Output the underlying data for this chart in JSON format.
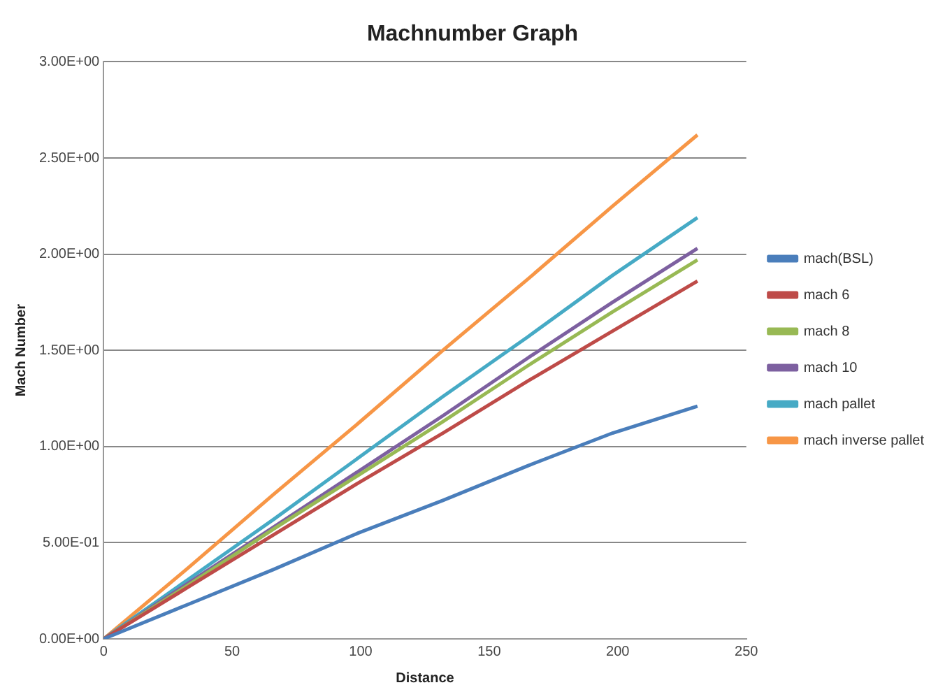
{
  "chart_data": {
    "type": "line",
    "title": "Machnumber Graph",
    "xlabel": "Distance",
    "ylabel": "Mach Number",
    "x": [
      0,
      33,
      66,
      99,
      132,
      165,
      198,
      231
    ],
    "series": [
      {
        "name": "mach(BSL)",
        "color": "#4a7ebb",
        "values": [
          0,
          0.18,
          0.36,
          0.55,
          0.72,
          0.9,
          1.07,
          1.21
        ]
      },
      {
        "name": "mach 6",
        "color": "#be4b48",
        "values": [
          0,
          0.27,
          0.54,
          0.81,
          1.07,
          1.34,
          1.6,
          1.86
        ]
      },
      {
        "name": "mach 8",
        "color": "#98b954",
        "values": [
          0,
          0.28,
          0.57,
          0.85,
          1.13,
          1.42,
          1.7,
          1.97
        ]
      },
      {
        "name": "mach 10",
        "color": "#7d60a0",
        "values": [
          0,
          0.29,
          0.58,
          0.87,
          1.16,
          1.46,
          1.75,
          2.03
        ]
      },
      {
        "name": "mach pallet",
        "color": "#46aac5",
        "values": [
          0,
          0.31,
          0.62,
          0.94,
          1.26,
          1.57,
          1.89,
          2.19
        ]
      },
      {
        "name": "mach inverse pallet",
        "color": "#f79646",
        "values": [
          0,
          0.37,
          0.75,
          1.12,
          1.5,
          1.87,
          2.25,
          2.62
        ]
      }
    ],
    "xlim": [
      0,
      250
    ],
    "xticks": [
      0,
      50,
      100,
      150,
      200,
      250
    ],
    "ylim": [
      0,
      3
    ],
    "yticks": [
      {
        "value": 0,
        "label": "0.00E+00"
      },
      {
        "value": 0.5,
        "label": "5.00E-01"
      },
      {
        "value": 1,
        "label": "1.00E+00"
      },
      {
        "value": 1.5,
        "label": "1.50E+00"
      },
      {
        "value": 2,
        "label": "2.00E+00"
      },
      {
        "value": 2.5,
        "label": "2.50E+00"
      },
      {
        "value": 3,
        "label": "3.00E+00"
      }
    ],
    "grid": "y",
    "legend": "right",
    "marker": "none",
    "line_style": "solid"
  }
}
